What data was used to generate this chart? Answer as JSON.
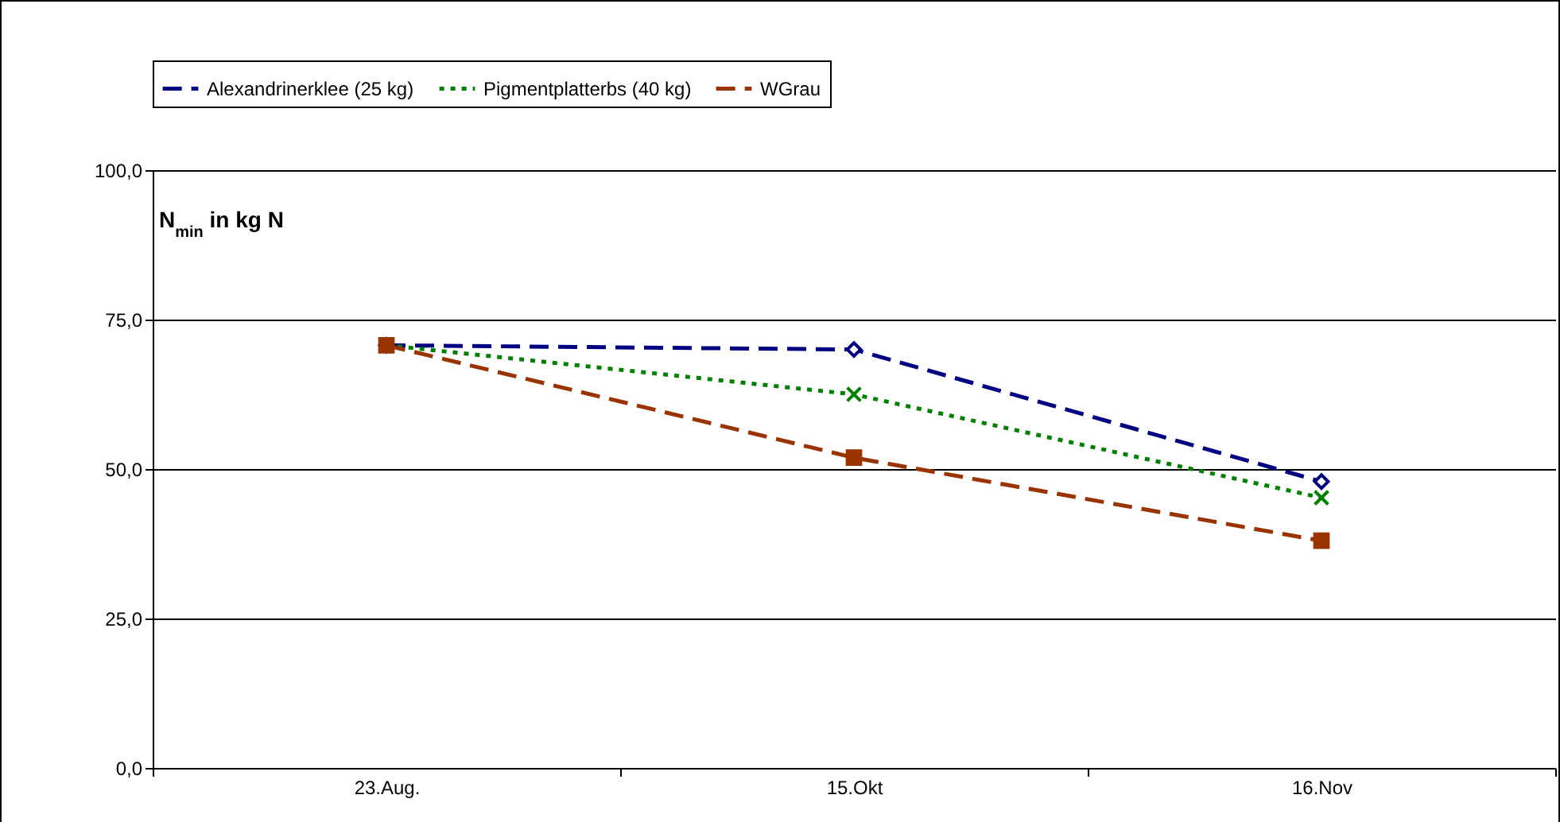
{
  "chart_data": {
    "type": "line",
    "ylabel": "N$_{min}$ in kg N",
    "categories": [
      "23.Aug.",
      "15.Okt",
      "16.Nov"
    ],
    "series": [
      {
        "name": "Alexandrinerklee (25 kg)",
        "color": "#000080",
        "marker": "diamond",
        "line_style": "dashed",
        "values": [
          70.7,
          70.0,
          47.9
        ]
      },
      {
        "name": "Pigmentplatterbs (40 kg)",
        "color": "#008000",
        "marker": "cross",
        "line_style": "dotted",
        "values": [
          70.7,
          62.5,
          45.2
        ]
      },
      {
        "name": "WGrau",
        "color": "#993300",
        "marker": "square",
        "line_style": "dashed",
        "values": [
          70.7,
          51.9,
          38.0
        ]
      }
    ],
    "ylim": [
      0,
      100
    ],
    "yticks": [
      {
        "value": 0,
        "label": "0,0"
      },
      {
        "value": 25,
        "label": "25,0"
      },
      {
        "value": 50,
        "label": "50,0"
      },
      {
        "value": 75,
        "label": "75,0"
      },
      {
        "value": 100,
        "label": "100,0"
      }
    ],
    "grid": "y",
    "legend": "top"
  }
}
